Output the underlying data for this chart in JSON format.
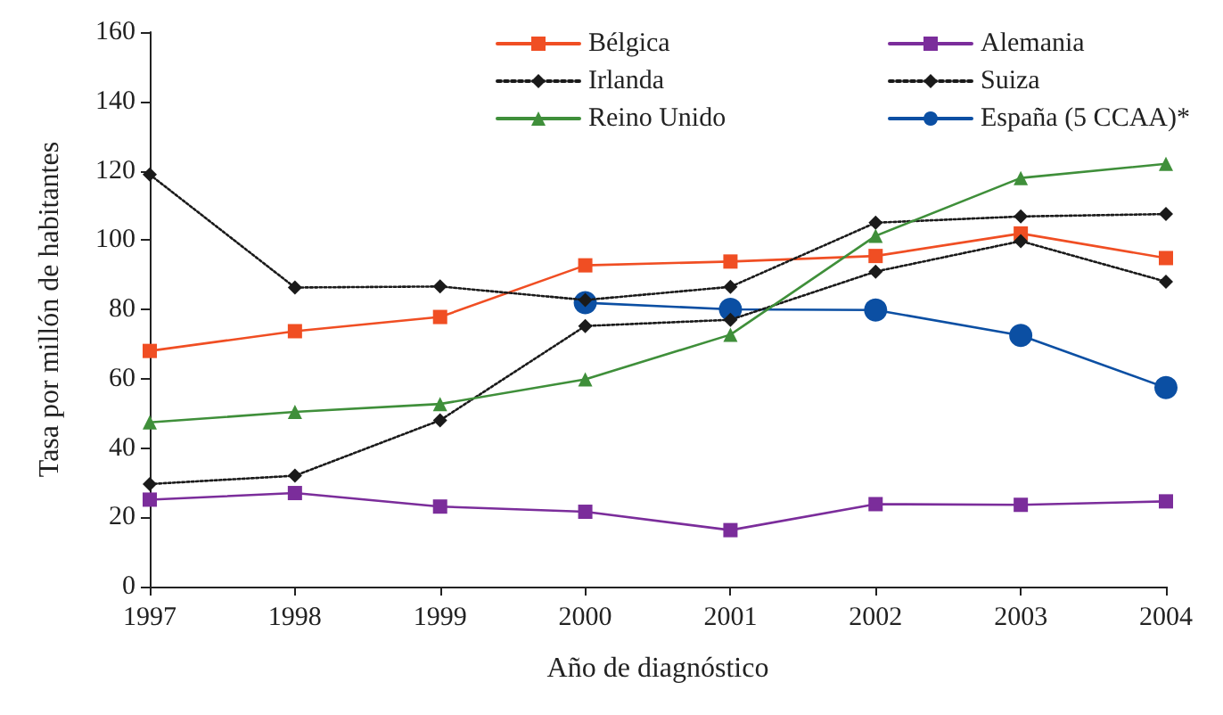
{
  "chart_data": {
    "type": "line",
    "xlabel": "Año de diagnóstico",
    "ylabel": "Tasa por millón de habitantes",
    "x": [
      1997,
      1998,
      1999,
      2000,
      2001,
      2002,
      2003,
      2004
    ],
    "xlim": [
      1997,
      2004
    ],
    "xticks": [
      1997,
      1998,
      1999,
      2000,
      2001,
      2002,
      2003,
      2004
    ],
    "ylim": [
      0,
      160
    ],
    "yticks": [
      0,
      20,
      40,
      60,
      80,
      100,
      120,
      140,
      160
    ],
    "grid": false,
    "legend": "top right",
    "series": [
      {
        "name": "Bélgica",
        "color": "#f04e23",
        "marker": "square",
        "line_style": "solid",
        "values": [
          68,
          73.7,
          77.8,
          92.7,
          93.8,
          95.4,
          101.9,
          94.8
        ]
      },
      {
        "name": "Alemania",
        "color": "#7b2d9b",
        "marker": "square",
        "line_style": "solid",
        "values": [
          25.1,
          27,
          23.1,
          21.6,
          16.3,
          23.8,
          23.6,
          24.6
        ]
      },
      {
        "name": "Irlanda",
        "color": "#1a1a1a",
        "marker": "diamond",
        "line_style": "dotted",
        "values": [
          29.6,
          32,
          48,
          75.2,
          77,
          90.9,
          99.7,
          88
        ]
      },
      {
        "name": "Suiza",
        "color": "#1a1a1a",
        "marker": "diamond",
        "line_style": "dotted",
        "values": [
          118.9,
          86.3,
          86.6,
          82.7,
          86.5,
          105,
          106.8,
          107.5
        ]
      },
      {
        "name": "Reino Unido",
        "color": "#3f8f3a",
        "marker": "triangle",
        "line_style": "solid",
        "values": [
          47.4,
          50.4,
          52.7,
          59.8,
          72.7,
          101.2,
          117.9,
          122
        ]
      },
      {
        "name": "España (5 CCAA)*",
        "color": "#0b4fa3",
        "marker": "circle",
        "line_style": "solid",
        "values": [
          null,
          null,
          null,
          81.9,
          80,
          79.8,
          72.5,
          57.4
        ]
      }
    ]
  }
}
